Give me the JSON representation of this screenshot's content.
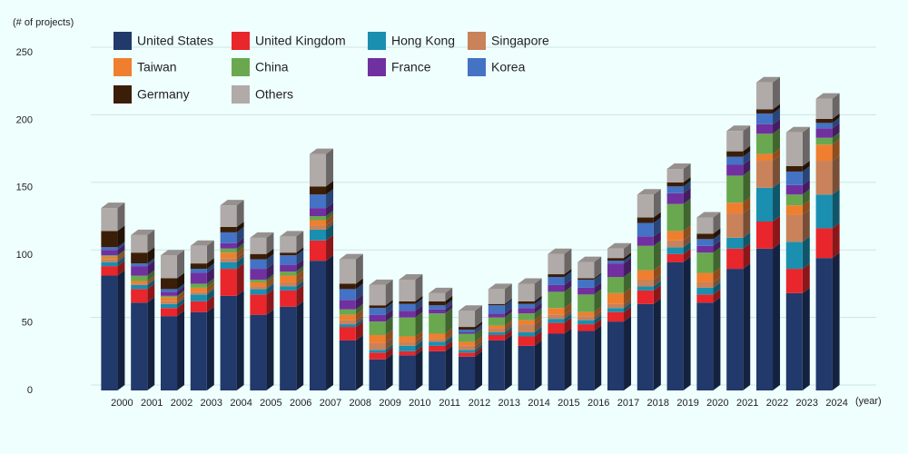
{
  "chart_data": {
    "type": "bar",
    "stacked": true,
    "y_label": "(# of projects)",
    "x_label": "(year)",
    "categories": [
      "2000",
      "2001",
      "2002",
      "2003",
      "2004",
      "2005",
      "2006",
      "2007",
      "2008",
      "2009",
      "2010",
      "2011",
      "2012",
      "2013",
      "2014",
      "2015",
      "2016",
      "2017",
      "2018",
      "2019",
      "2020",
      "2021",
      "2022",
      "2023",
      "2024"
    ],
    "series": [
      {
        "name": "United States",
        "color": "#22396b",
        "values": [
          85,
          65,
          55,
          58,
          70,
          56,
          62,
          96,
          37,
          23,
          26,
          29,
          25,
          37,
          33,
          42,
          44,
          51,
          64,
          95,
          65,
          90,
          105,
          72,
          98
        ]
      },
      {
        "name": "United Kingdom",
        "color": "#e8262b",
        "values": [
          7,
          10,
          6,
          8,
          20,
          15,
          12,
          15,
          10,
          5,
          3,
          4,
          3,
          4,
          7,
          8,
          5,
          7,
          10,
          6,
          6,
          15,
          20,
          18,
          22
        ]
      },
      {
        "name": "Hong Kong",
        "color": "#1a8fb0",
        "values": [
          3,
          3,
          3,
          5,
          5,
          4,
          3,
          8,
          2,
          2,
          4,
          3,
          2,
          2,
          3,
          3,
          3,
          3,
          3,
          5,
          5,
          8,
          25,
          20,
          25
        ]
      },
      {
        "name": "Singapore",
        "color": "#c9825a",
        "values": [
          2,
          1,
          2,
          2,
          3,
          2,
          3,
          3,
          3,
          5,
          3,
          2,
          3,
          3,
          6,
          3,
          3,
          3,
          5,
          5,
          4,
          18,
          20,
          20,
          25
        ]
      },
      {
        "name": "Taiwan",
        "color": "#ef7f2f",
        "values": [
          2,
          2,
          3,
          3,
          4,
          3,
          5,
          4,
          4,
          6,
          4,
          4,
          3,
          2,
          3,
          5,
          3,
          8,
          7,
          7,
          7,
          8,
          5,
          7,
          12
        ]
      },
      {
        "name": "China",
        "color": "#6aa84f",
        "values": [
          1,
          4,
          1,
          3,
          3,
          2,
          3,
          3,
          4,
          10,
          14,
          15,
          6,
          6,
          5,
          12,
          13,
          12,
          18,
          20,
          15,
          20,
          15,
          8,
          5
        ]
      },
      {
        "name": "France",
        "color": "#7030a0",
        "values": [
          4,
          7,
          3,
          8,
          4,
          8,
          5,
          6,
          7,
          5,
          5,
          3,
          1,
          3,
          4,
          5,
          5,
          10,
          7,
          8,
          5,
          8,
          7,
          7,
          7
        ]
      },
      {
        "name": "Korea",
        "color": "#4472c4",
        "values": [
          2,
          2,
          2,
          3,
          8,
          7,
          7,
          10,
          8,
          5,
          5,
          3,
          2,
          6,
          3,
          6,
          6,
          2,
          10,
          5,
          5,
          6,
          8,
          10,
          4
        ]
      },
      {
        "name": "Germany",
        "color": "#3b1e08",
        "values": [
          12,
          8,
          8,
          4,
          4,
          4,
          2,
          6,
          4,
          2,
          2,
          3,
          2,
          1,
          2,
          2,
          1,
          2,
          4,
          3,
          4,
          4,
          3,
          4,
          3
        ]
      },
      {
        "name": "Others",
        "color": "#b0aaa8",
        "values": [
          17,
          13,
          17,
          13,
          16,
          12,
          12,
          24,
          18,
          15,
          16,
          6,
          12,
          11,
          13,
          15,
          12,
          7,
          17,
          10,
          12,
          15,
          20,
          25,
          15
        ]
      }
    ],
    "ylim": [
      0,
      250
    ],
    "yticks": [
      0,
      50,
      100,
      150,
      200,
      250
    ],
    "grid": true
  }
}
